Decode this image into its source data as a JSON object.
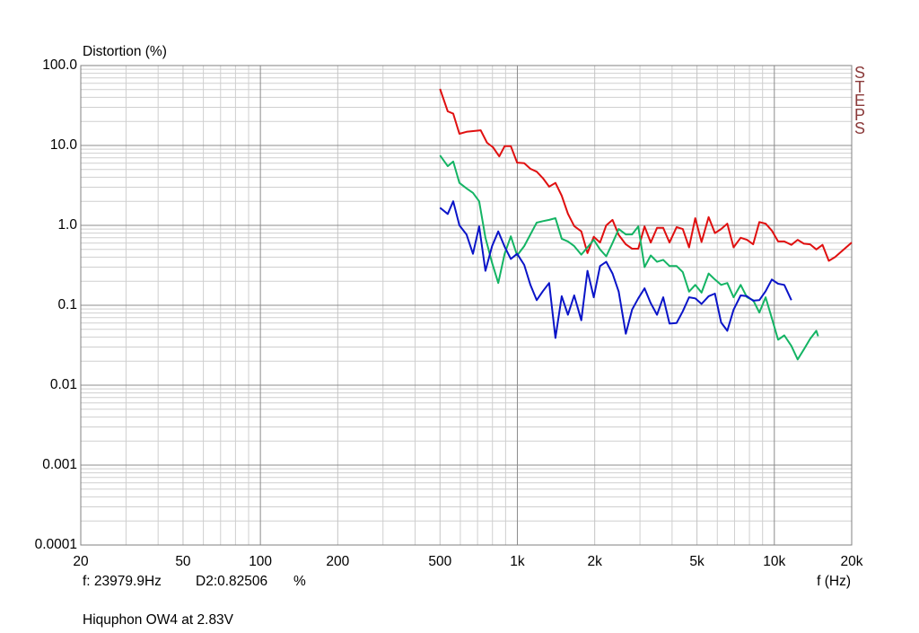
{
  "chart_data": {
    "type": "line",
    "log_x": true,
    "log_y": true,
    "grid": true,
    "ylabel": "Distortion (%)",
    "xlabel": "f (Hz)",
    "brand": "STEPS",
    "cursor": {
      "freq": "f: 23979.9Hz",
      "value": "D2:0.82506",
      "unit": "%"
    },
    "caption": "Hiquphon OW4 at 2.83V",
    "xlim": [
      20,
      20000
    ],
    "ylim": [
      0.0001,
      100
    ],
    "xticks": [
      20,
      50,
      100,
      200,
      500,
      {
        "value": 1000,
        "label": "1k"
      },
      {
        "value": 2000,
        "label": "2k"
      },
      {
        "value": 5000,
        "label": "5k"
      },
      {
        "value": 10000,
        "label": "10k"
      },
      {
        "value": 20000,
        "label": "20k"
      }
    ],
    "yticks": [
      {
        "value": 100,
        "label": "100.0"
      },
      {
        "value": 10,
        "label": "10.0"
      },
      {
        "value": 1,
        "label": "1.0"
      },
      0.1,
      0.01,
      0.001,
      0.0001
    ],
    "xminorticks": [
      30,
      40,
      60,
      70,
      80,
      90,
      300,
      400,
      600,
      700,
      800,
      900,
      3000,
      4000,
      6000,
      7000,
      8000,
      9000
    ],
    "yminorticks": [
      0.0002,
      0.0003,
      0.0004,
      0.0005,
      0.0006,
      0.0007,
      0.0008,
      0.0009,
      0.002,
      0.003,
      0.004,
      0.005,
      0.006,
      0.007,
      0.008,
      0.009,
      0.02,
      0.03,
      0.04,
      0.05,
      0.06,
      0.07,
      0.08,
      0.09,
      0.2,
      0.3,
      0.4,
      0.5,
      0.6,
      0.7,
      0.8,
      0.9,
      2,
      3,
      4,
      5,
      6,
      7,
      8,
      9,
      20,
      30,
      40,
      50,
      60,
      70,
      80,
      90
    ],
    "series": [
      {
        "color": "#e01010",
        "x": [
          500,
          536,
          563,
          595,
          634,
          686,
          720,
          762,
          804,
          850,
          892,
          943,
          998,
          1063,
          1124,
          1189,
          1257,
          1330,
          1407,
          1488,
          1573,
          1664,
          1773,
          1875,
          1983,
          2097,
          2218,
          2345,
          2480,
          2643,
          2795,
          2955,
          3125,
          3305,
          3495,
          3696,
          3908,
          4165,
          4404,
          4657,
          4925,
          5208,
          5551,
          5870,
          6207,
          6563,
          6940,
          7398,
          7822,
          8271,
          8746,
          9248,
          9779,
          10340,
          10934,
          11654,
          12323,
          13030,
          13778,
          14570,
          15406,
          16291,
          17226,
          18214,
          20000
        ],
        "values": [
          51,
          26.7,
          25,
          14,
          14.8,
          15.2,
          15.5,
          10.8,
          9.5,
          7.3,
          9.8,
          9.8,
          6.1,
          6,
          5.1,
          4.7,
          3.9,
          3.05,
          3.4,
          2.35,
          1.4,
          0.98,
          0.84,
          0.45,
          0.72,
          0.61,
          1.0,
          1.17,
          0.76,
          0.58,
          0.51,
          0.51,
          0.97,
          0.61,
          0.93,
          0.93,
          0.61,
          0.95,
          0.9,
          0.53,
          1.23,
          0.62,
          1.27,
          0.8,
          0.9,
          1.05,
          0.53,
          0.7,
          0.66,
          0.58,
          1.1,
          1.05,
          0.86,
          0.63,
          0.63,
          0.57,
          0.66,
          0.59,
          0.58,
          0.5,
          0.57,
          0.36,
          0.4,
          0.47,
          0.61
        ]
      },
      {
        "color": "#14b464",
        "x": [
          500,
          536,
          563,
          595,
          634,
          672,
          710,
          751,
          797,
          843,
          892,
          943,
          998,
          1063,
          1124,
          1189,
          1257,
          1330,
          1407,
          1488,
          1573,
          1664,
          1773,
          1875,
          1983,
          2097,
          2218,
          2345,
          2480,
          2643,
          2795,
          2955,
          3125,
          3305,
          3495,
          3696,
          3908,
          4165,
          4404,
          4657,
          4925,
          5208,
          5551,
          5870,
          6207,
          6563,
          6940,
          7398,
          7822,
          8271,
          8746,
          9248,
          9779,
          10340,
          10934,
          11654,
          12323,
          13030,
          13778,
          14570,
          14800
        ],
        "values": [
          7.5,
          5.5,
          6.3,
          3.4,
          2.9,
          2.55,
          2.0,
          0.7,
          0.34,
          0.19,
          0.44,
          0.73,
          0.42,
          0.55,
          0.77,
          1.08,
          1.13,
          1.17,
          1.23,
          0.68,
          0.63,
          0.55,
          0.43,
          0.53,
          0.66,
          0.5,
          0.41,
          0.6,
          0.9,
          0.77,
          0.77,
          0.97,
          0.3,
          0.42,
          0.35,
          0.37,
          0.31,
          0.31,
          0.26,
          0.148,
          0.18,
          0.144,
          0.25,
          0.21,
          0.18,
          0.19,
          0.126,
          0.18,
          0.126,
          0.116,
          0.081,
          0.126,
          0.069,
          0.037,
          0.042,
          0.031,
          0.021,
          0.028,
          0.038,
          0.048,
          0.041
        ]
      },
      {
        "color": "#0a14c8",
        "x": [
          500,
          536,
          563,
          595,
          634,
          672,
          710,
          751,
          797,
          843,
          892,
          943,
          998,
          1063,
          1124,
          1189,
          1257,
          1330,
          1407,
          1488,
          1573,
          1664,
          1773,
          1875,
          1983,
          2097,
          2218,
          2345,
          2480,
          2643,
          2795,
          2955,
          3125,
          3305,
          3495,
          3696,
          3908,
          4165,
          4404,
          4657,
          4925,
          5208,
          5551,
          5870,
          6207,
          6563,
          6940,
          7398,
          7822,
          8271,
          8746,
          9248,
          9779,
          10340,
          10934,
          11654
        ],
        "values": [
          1.66,
          1.39,
          2.0,
          1.0,
          0.77,
          0.44,
          0.97,
          0.27,
          0.55,
          0.84,
          0.54,
          0.38,
          0.44,
          0.32,
          0.18,
          0.116,
          0.15,
          0.19,
          0.039,
          0.13,
          0.076,
          0.133,
          0.065,
          0.27,
          0.126,
          0.31,
          0.35,
          0.25,
          0.148,
          0.044,
          0.088,
          0.122,
          0.163,
          0.106,
          0.076,
          0.126,
          0.059,
          0.06,
          0.084,
          0.126,
          0.122,
          0.104,
          0.13,
          0.14,
          0.061,
          0.048,
          0.088,
          0.133,
          0.13,
          0.114,
          0.116,
          0.15,
          0.21,
          0.186,
          0.18,
          0.116
        ]
      }
    ]
  }
}
